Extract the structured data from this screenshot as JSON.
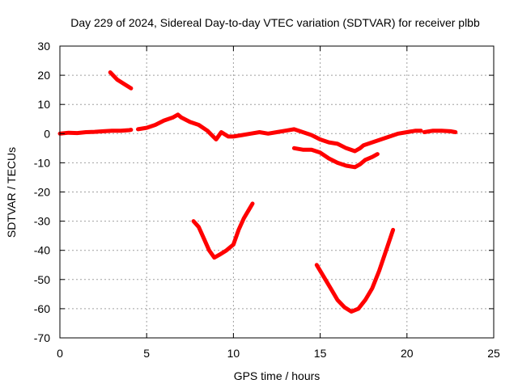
{
  "chart_data": {
    "type": "line",
    "title": "Day 229 of 2024, Sidereal Day-to-day VTEC variation (SDTVAR) for receiver plbb",
    "xlabel": "GPS time / hours",
    "ylabel": "SDTVAR / TECUs",
    "xlim": [
      0,
      25
    ],
    "ylim": [
      -70,
      30
    ],
    "xticks": [
      0,
      5,
      10,
      15,
      20,
      25
    ],
    "yticks": [
      -70,
      -60,
      -50,
      -40,
      -30,
      -20,
      -10,
      0,
      10,
      20,
      30
    ],
    "grid": true,
    "color": "#ff0000",
    "series": [
      {
        "name": "trace-1",
        "points": [
          [
            0.0,
            0.0
          ],
          [
            0.5,
            0.3
          ],
          [
            1.0,
            0.2
          ],
          [
            1.5,
            0.5
          ],
          [
            2.0,
            0.6
          ],
          [
            2.5,
            0.8
          ],
          [
            3.0,
            1.0
          ],
          [
            3.5,
            1.0
          ],
          [
            4.0,
            1.2
          ],
          [
            4.1,
            1.3
          ]
        ]
      },
      {
        "name": "trace-2",
        "points": [
          [
            2.9,
            21.0
          ],
          [
            3.3,
            18.5
          ],
          [
            3.7,
            17.0
          ],
          [
            4.1,
            15.5
          ]
        ]
      },
      {
        "name": "trace-3",
        "points": [
          [
            4.5,
            1.5
          ],
          [
            5.0,
            2.0
          ],
          [
            5.5,
            3.0
          ],
          [
            6.0,
            4.5
          ],
          [
            6.5,
            5.5
          ],
          [
            6.8,
            6.5
          ],
          [
            7.0,
            5.5
          ],
          [
            7.5,
            4.0
          ],
          [
            8.0,
            3.0
          ],
          [
            8.5,
            1.0
          ],
          [
            9.0,
            -2.0
          ],
          [
            9.3,
            0.5
          ],
          [
            9.7,
            -1.0
          ],
          [
            10.0,
            -1.0
          ],
          [
            10.5,
            -0.5
          ],
          [
            11.0,
            0.0
          ],
          [
            11.5,
            0.5
          ],
          [
            12.0,
            0.0
          ],
          [
            12.5,
            0.5
          ],
          [
            13.0,
            1.0
          ],
          [
            13.5,
            1.5
          ],
          [
            14.0,
            0.5
          ],
          [
            14.5,
            -0.5
          ],
          [
            15.0,
            -2.0
          ],
          [
            15.5,
            -3.0
          ],
          [
            16.0,
            -3.5
          ],
          [
            16.5,
            -5.0
          ],
          [
            17.0,
            -6.0
          ],
          [
            17.3,
            -5.0
          ],
          [
            17.5,
            -4.0
          ],
          [
            18.0,
            -3.0
          ],
          [
            18.5,
            -2.0
          ],
          [
            19.0,
            -1.0
          ],
          [
            19.5,
            0.0
          ],
          [
            20.0,
            0.5
          ],
          [
            20.5,
            1.0
          ],
          [
            20.8,
            1.0
          ]
        ]
      },
      {
        "name": "trace-4",
        "points": [
          [
            21.0,
            0.5
          ],
          [
            21.5,
            1.0
          ],
          [
            22.0,
            1.0
          ],
          [
            22.5,
            0.8
          ],
          [
            22.8,
            0.5
          ]
        ]
      },
      {
        "name": "trace-5",
        "points": [
          [
            7.7,
            -30.0
          ],
          [
            8.0,
            -32.0
          ],
          [
            8.3,
            -36.0
          ],
          [
            8.6,
            -40.0
          ],
          [
            8.9,
            -42.5
          ],
          [
            9.2,
            -41.5
          ],
          [
            9.6,
            -40.0
          ],
          [
            10.0,
            -38.0
          ],
          [
            10.3,
            -33.0
          ],
          [
            10.6,
            -29.0
          ],
          [
            10.9,
            -26.0
          ],
          [
            11.1,
            -24.0
          ]
        ]
      },
      {
        "name": "trace-6",
        "points": [
          [
            13.5,
            -5.0
          ],
          [
            14.0,
            -5.5
          ],
          [
            14.5,
            -5.5
          ],
          [
            15.0,
            -6.5
          ],
          [
            15.5,
            -8.5
          ],
          [
            16.0,
            -10.0
          ],
          [
            16.5,
            -11.0
          ],
          [
            17.0,
            -11.5
          ],
          [
            17.3,
            -10.5
          ],
          [
            17.6,
            -9.0
          ],
          [
            18.0,
            -8.0
          ],
          [
            18.3,
            -7.0
          ]
        ]
      },
      {
        "name": "trace-7",
        "points": [
          [
            14.8,
            -45.0
          ],
          [
            15.2,
            -49.0
          ],
          [
            15.6,
            -53.0
          ],
          [
            16.0,
            -57.0
          ],
          [
            16.4,
            -59.5
          ],
          [
            16.8,
            -61.0
          ],
          [
            17.2,
            -60.0
          ],
          [
            17.6,
            -57.0
          ],
          [
            18.0,
            -53.0
          ],
          [
            18.4,
            -47.0
          ],
          [
            18.8,
            -40.0
          ],
          [
            19.2,
            -33.0
          ]
        ]
      }
    ]
  }
}
